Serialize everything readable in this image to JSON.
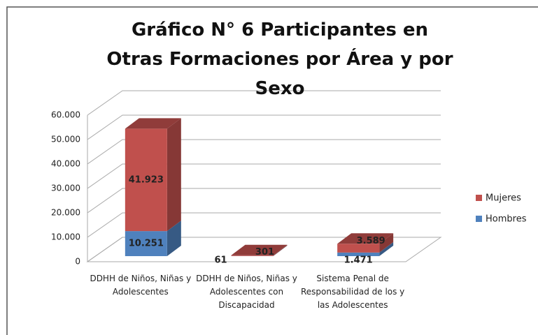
{
  "chart_data": {
    "type": "bar3d_stacked",
    "title": "Gráfico N° 6 Participantes en Otras Formaciones por Área y por Sexo",
    "categories": [
      "DDHH de Niños, Niñas y Adolescentes",
      "DDHH de Niños, Niñas y Adolescentes con Discapacidad",
      "Sistema Penal de Responsabilidad de los y las Adolescentes"
    ],
    "series": [
      {
        "name": "Hombres",
        "color": "#4f81bd",
        "values": [
          10251,
          61,
          1471
        ],
        "value_labels": [
          "10.251",
          "61",
          "1.471"
        ]
      },
      {
        "name": "Mujeres",
        "color": "#c0504d",
        "values": [
          41923,
          301,
          3589
        ],
        "value_labels": [
          "41.923",
          "301",
          "3.589"
        ]
      }
    ],
    "ylim": [
      0,
      60000
    ],
    "yticks": [
      0,
      {
        "value": 10000,
        "label": "10.000"
      },
      {
        "value": 20000,
        "label": "20.000"
      },
      {
        "value": 30000,
        "label": "30.000"
      },
      {
        "value": 40000,
        "label": "40.000"
      },
      {
        "value": 50000,
        "label": "50.000"
      },
      {
        "value": 60000,
        "label": "60.000"
      }
    ],
    "grid": true,
    "legend": "right"
  }
}
